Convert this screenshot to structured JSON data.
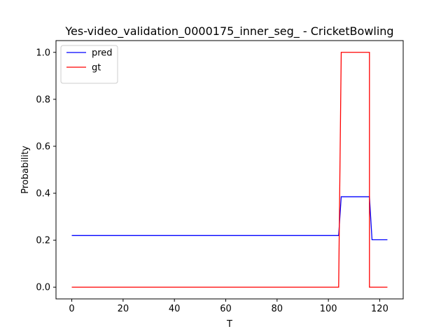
{
  "chart_data": {
    "type": "line",
    "title": "Yes-video_validation_0000175_inner_seg_ - CricketBowling",
    "xlabel": "T",
    "ylabel": "Probability",
    "xlim": [
      -6.15,
      129.15
    ],
    "ylim": [
      -0.05,
      1.05
    ],
    "xticks": [
      0,
      20,
      40,
      60,
      80,
      100,
      120
    ],
    "yticks": [
      0.0,
      0.2,
      0.4,
      0.6,
      0.8,
      1.0
    ],
    "xtick_labels": [
      "0",
      "20",
      "40",
      "60",
      "80",
      "100",
      "120"
    ],
    "ytick_labels": [
      "0.0",
      "0.2",
      "0.4",
      "0.6",
      "0.8",
      "1.0"
    ],
    "grid": false,
    "legend": "top-left",
    "series": [
      {
        "name": "pred",
        "color": "#0000ff",
        "x": [
          0,
          104,
          105,
          116,
          117,
          123
        ],
        "y": [
          0.22,
          0.22,
          0.385,
          0.385,
          0.202,
          0.202
        ]
      },
      {
        "name": "gt",
        "color": "#ff0000",
        "x": [
          0,
          104,
          105,
          116,
          116,
          123
        ],
        "y": [
          0.0,
          0.0,
          1.0,
          1.0,
          0.0,
          0.0
        ]
      }
    ]
  }
}
